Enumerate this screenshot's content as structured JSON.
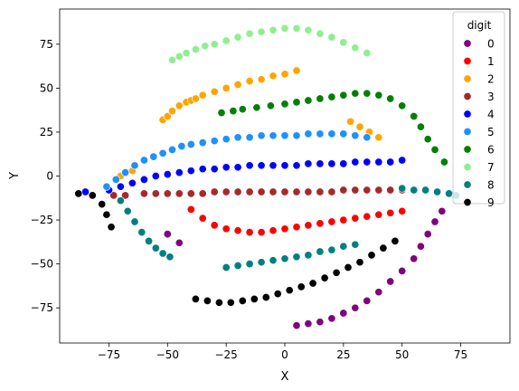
{
  "chart_data": {
    "type": "scatter",
    "title": "",
    "xlabel": "X",
    "ylabel": "Y",
    "xlim": [
      -96,
      96
    ],
    "ylim": [
      -95,
      95
    ],
    "xticks": [
      -75,
      -50,
      -25,
      0,
      25,
      50,
      75
    ],
    "yticks": [
      -75,
      -50,
      -25,
      0,
      25,
      50,
      75
    ],
    "xtick_labels": [
      "−75",
      "−50",
      "−25",
      "0",
      "25",
      "50",
      "75"
    ],
    "ytick_labels": [
      "−75",
      "−50",
      "−25",
      "0",
      "25",
      "50",
      "75"
    ],
    "grid": false,
    "legend": {
      "title": "digit",
      "placement": "top-right",
      "entries": [
        "0",
        "1",
        "2",
        "3",
        "4",
        "5",
        "6",
        "7",
        "8",
        "9"
      ]
    },
    "series": [
      {
        "name": "0",
        "color": "#800080",
        "x": [
          -50,
          -45,
          5,
          10,
          15,
          20,
          25,
          30,
          35,
          40,
          45,
          50,
          55,
          58,
          61,
          64,
          67
        ],
        "y": [
          -33,
          -38,
          -85,
          -84,
          -83,
          -81,
          -78,
          -75,
          -71,
          -66,
          -60,
          -54,
          -47,
          -40,
          -33,
          -26,
          -20
        ]
      },
      {
        "name": "1",
        "color": "#ff0000",
        "x": [
          -40,
          -35,
          -30,
          -25,
          -20,
          -15,
          -10,
          -5,
          0,
          5,
          10,
          15,
          20,
          25,
          30,
          35,
          40,
          45,
          50
        ],
        "y": [
          -19,
          -24,
          -28,
          -30,
          -31,
          -32,
          -32,
          -31,
          -30,
          -29,
          -28,
          -27,
          -26,
          -25,
          -24,
          -23,
          -22,
          -21,
          -20
        ]
      },
      {
        "name": "2",
        "color": "#ffa500",
        "x": [
          -52,
          -50,
          -48,
          -45,
          -42,
          -40,
          -38,
          -35,
          -30,
          -25,
          -20,
          -15,
          -10,
          -5,
          0,
          5,
          28,
          32,
          36,
          40,
          -70,
          -65
        ],
        "y": [
          32,
          34,
          37,
          40,
          42,
          43,
          44,
          46,
          48,
          50,
          52,
          54,
          55,
          57,
          58,
          60,
          31,
          28,
          25,
          22,
          0,
          3
        ]
      },
      {
        "name": "3",
        "color": "#a52a2a",
        "x": [
          -73,
          -68,
          -60,
          -55,
          -50,
          -45,
          -40,
          -35,
          -30,
          -25,
          -20,
          -15,
          -10,
          -5,
          0,
          5,
          10,
          15,
          20,
          25,
          30,
          35,
          40,
          45,
          50
        ],
        "y": [
          -11,
          -11,
          -10,
          -10,
          -10,
          -10,
          -10,
          -10,
          -9,
          -9,
          -9,
          -9,
          -9,
          -9,
          -9,
          -9,
          -9,
          -9,
          -9,
          -8,
          -8,
          -8,
          -8,
          -8,
          -8
        ]
      },
      {
        "name": "4",
        "color": "#0000ff",
        "x": [
          -85,
          -75,
          -70,
          -65,
          -60,
          -55,
          -50,
          -45,
          -40,
          -35,
          -30,
          -25,
          -20,
          -15,
          -10,
          -5,
          0,
          5,
          10,
          15,
          20,
          25,
          30,
          35,
          40,
          45,
          50
        ],
        "y": [
          -9,
          -8,
          -6,
          -4,
          -2,
          0,
          1,
          2,
          3,
          4,
          4,
          5,
          5,
          6,
          6,
          6,
          6,
          6,
          7,
          7,
          7,
          7,
          8,
          8,
          8,
          8,
          9
        ]
      },
      {
        "name": "5",
        "color": "#1e90ff",
        "x": [
          -76,
          -72,
          -68,
          -64,
          -60,
          -56,
          -52,
          -48,
          -44,
          -40,
          -35,
          -30,
          -25,
          -20,
          -15,
          -10,
          -5,
          0,
          5,
          10,
          15,
          20,
          25,
          30,
          35
        ],
        "y": [
          -6,
          -2,
          2,
          6,
          9,
          11,
          13,
          15,
          17,
          18,
          19,
          20,
          21,
          22,
          22,
          23,
          23,
          23,
          23,
          24,
          24,
          24,
          24,
          23,
          22
        ]
      },
      {
        "name": "6",
        "color": "#008000",
        "x": [
          -27,
          -22,
          -18,
          -12,
          -6,
          0,
          5,
          10,
          15,
          20,
          25,
          30,
          35,
          40,
          45,
          50,
          55,
          58,
          61,
          64,
          68
        ],
        "y": [
          36,
          37,
          38,
          39,
          40,
          41,
          42,
          43,
          44,
          45,
          46,
          47,
          47,
          46,
          44,
          40,
          34,
          28,
          21,
          15,
          8
        ]
      },
      {
        "name": "7",
        "color": "#90ee90",
        "x": [
          -48,
          -45,
          -42,
          -38,
          -34,
          -30,
          -25,
          -20,
          -15,
          -10,
          -5,
          0,
          5,
          10,
          15,
          20,
          25,
          30,
          35
        ],
        "y": [
          66,
          68,
          70,
          72,
          74,
          75,
          77,
          79,
          81,
          82,
          83,
          84,
          84,
          83,
          81,
          79,
          76,
          73,
          70
        ]
      },
      {
        "name": "8",
        "color": "#008080",
        "x": [
          -70,
          -67,
          -64,
          -61,
          -58,
          -55,
          -52,
          -49,
          -25,
          -20,
          -15,
          -10,
          -5,
          0,
          5,
          10,
          15,
          20,
          25,
          30,
          50,
          55,
          60,
          65,
          70,
          73
        ],
        "y": [
          -14,
          -20,
          -26,
          -32,
          -37,
          -41,
          -44,
          -46,
          -52,
          -51,
          -50,
          -49,
          -48,
          -47,
          -46,
          -45,
          -43,
          -42,
          -40,
          -39,
          -7,
          -8,
          -8,
          -9,
          -10,
          -11
        ]
      },
      {
        "name": "9",
        "color": "#000000",
        "x": [
          -88,
          -82,
          -78,
          -76,
          -74,
          -38,
          -33,
          -28,
          -23,
          -18,
          -13,
          -8,
          -3,
          2,
          7,
          12,
          17,
          22,
          27,
          32,
          37,
          42,
          47
        ],
        "y": [
          -10,
          -11,
          -16,
          -22,
          -29,
          -70,
          -71,
          -72,
          -72,
          -71,
          -70,
          -69,
          -67,
          -65,
          -63,
          -61,
          -58,
          -55,
          -52,
          -49,
          -45,
          -41,
          -37
        ]
      }
    ]
  }
}
